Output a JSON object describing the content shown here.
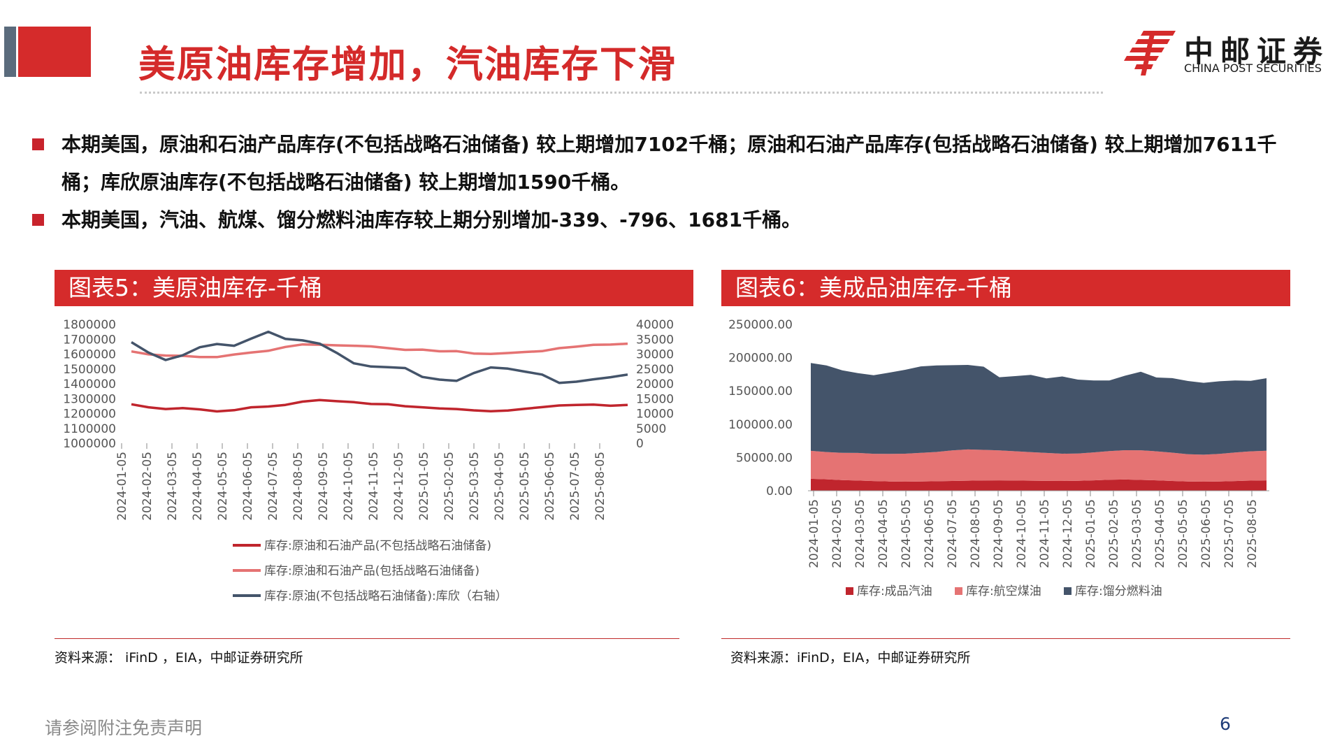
{
  "title": "美原油库存增加，汽油库存下滑",
  "logo": {
    "cn": "中邮证券",
    "en": "CHINA POST SECURITIES"
  },
  "bullets": [
    "本期美国，原油和石油产品库存(不包括战略石油储备) 较上期增加7102千桶；原油和石油产品库存(包括战略石油储备) 较上期增加7611千桶；库欣原油库存(不包括战略石油储备) 较上期增加1590千桶。",
    "本期美国，汽油、航煤、馏分燃料油库存较上期分别增加-339、-796、1681千桶。"
  ],
  "colors": {
    "accent_red": "#d52b2b",
    "dark_red": "#c0252d",
    "light_red": "#e57373",
    "navy": "#44546a",
    "slate": "#5a6b7c"
  },
  "chart_left": {
    "header": "图表5：美原油库存-千桶",
    "source": "资料来源： iFinD ，EIA，中邮证券研究所"
  },
  "chart_right": {
    "header": "图表6：美成品油库存-千桶",
    "source": "资料来源：iFinD，EIA，中邮证券研究所"
  },
  "chart_data": [
    {
      "type": "line",
      "x_ticks": [
        "2024-01-05",
        "2024-02-05",
        "2024-03-05",
        "2024-04-05",
        "2024-05-05",
        "2024-06-05",
        "2024-07-05",
        "2024-08-05",
        "2024-09-05",
        "2024-10-05",
        "2024-11-05",
        "2024-12-05",
        "2025-01-05",
        "2025-02-05",
        "2025-03-05",
        "2025-04-05",
        "2025-05-05",
        "2025-06-05",
        "2025-07-05",
        "2025-08-05"
      ],
      "y_left_ticks": [
        "1800000",
        "1700000",
        "1600000",
        "1500000",
        "1400000",
        "1300000",
        "1200000",
        "1100000",
        "1000000"
      ],
      "y_right_ticks": [
        "40000",
        "35000",
        "30000",
        "25000",
        "20000",
        "15000",
        "10000",
        "5000",
        "0"
      ],
      "ylim_left": [
        1000000,
        1800000
      ],
      "ylim_right": [
        0,
        40000
      ],
      "legend_position": "bottom",
      "series": [
        {
          "name": "库存:原油和石油产品(不包括战略石油储备)",
          "axis": "left",
          "color": "#c0252d",
          "values": [
            1262000,
            1242000,
            1230000,
            1236000,
            1228000,
            1214000,
            1222000,
            1242000,
            1247000,
            1258000,
            1280000,
            1291000,
            1283000,
            1276000,
            1264000,
            1262000,
            1249000,
            1242000,
            1234000,
            1230000,
            1221000,
            1215000,
            1220000,
            1232000,
            1243000,
            1254000,
            1258000,
            1260000,
            1252000,
            1258000
          ]
        },
        {
          "name": "库存:原油和石油产品(包括战略石油储备)",
          "axis": "left",
          "color": "#e57373",
          "values": [
            1618000,
            1598000,
            1590000,
            1588000,
            1580000,
            1580000,
            1597000,
            1611000,
            1622000,
            1648000,
            1665000,
            1663000,
            1659000,
            1656000,
            1652000,
            1640000,
            1628000,
            1630000,
            1619000,
            1620000,
            1604000,
            1601000,
            1607000,
            1614000,
            1620000,
            1640000,
            1650000,
            1662000,
            1664000,
            1670000
          ]
        },
        {
          "name": "库存:原油(不包括战略石油储备):库欣（右轴）",
          "axis": "right",
          "color": "#44546a",
          "values": [
            34000,
            30500,
            28000,
            29600,
            32300,
            33400,
            32800,
            35200,
            37500,
            35100,
            34600,
            33500,
            30400,
            26900,
            25800,
            25600,
            25300,
            22300,
            21400,
            21000,
            23600,
            25500,
            25100,
            24100,
            23100,
            20300,
            20700,
            21500,
            22200,
            23100
          ]
        }
      ]
    },
    {
      "type": "area",
      "stacked": true,
      "x_ticks": [
        "2024-01-05",
        "2024-02-05",
        "2024-03-05",
        "2024-04-05",
        "2024-05-05",
        "2024-06-05",
        "2024-07-05",
        "2024-08-05",
        "2024-09-05",
        "2024-10-05",
        "2024-11-05",
        "2024-12-05",
        "2025-01-05",
        "2025-02-05",
        "2025-03-05",
        "2025-04-05",
        "2025-05-05",
        "2025-06-05",
        "2025-07-05",
        "2025-08-05"
      ],
      "y_ticks": [
        "250000.00",
        "200000.00",
        "150000.00",
        "100000.00",
        "50000.00",
        "0.00"
      ],
      "ylim": [
        0,
        250000
      ],
      "legend_position": "bottom",
      "series": [
        {
          "name": "库存:成品汽油",
          "color": "#c0252d",
          "values": [
            18000,
            17200,
            16000,
            15300,
            14600,
            14000,
            13700,
            13900,
            14300,
            14700,
            15100,
            15400,
            15600,
            15300,
            15100,
            14800,
            14700,
            15000,
            15700,
            16600,
            16900,
            16300,
            15700,
            14700,
            13900,
            13700,
            14000,
            14600,
            15200,
            15600
          ]
        },
        {
          "name": "库存:航空煤油",
          "color": "#e57373",
          "values": [
            42000,
            41000,
            41000,
            41500,
            41000,
            41500,
            42000,
            43000,
            44000,
            46000,
            47000,
            46000,
            45000,
            44000,
            43000,
            42000,
            41000,
            41000,
            42000,
            43000,
            44000,
            44500,
            43500,
            42500,
            41000,
            40500,
            41500,
            43000,
            44000,
            44500
          ]
        },
        {
          "name": "库存:馏分燃料油",
          "color": "#44546a",
          "values": [
            132000,
            130000,
            124000,
            120000,
            118000,
            122000,
            126000,
            130000,
            130000,
            128000,
            127000,
            125000,
            110000,
            113000,
            116000,
            112000,
            116000,
            111000,
            108000,
            106000,
            112000,
            118000,
            111000,
            112000,
            110000,
            108000,
            109000,
            108000,
            106000,
            109000
          ]
        }
      ]
    }
  ],
  "disclaimer": "请参阅附注免责声明",
  "page_number": "6"
}
